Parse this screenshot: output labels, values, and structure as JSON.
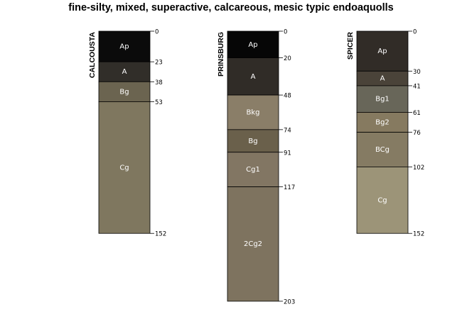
{
  "title": "fine-silty, mixed, superactive, calcareous, mesic typic endoaquolls",
  "profiles": [
    {
      "name": "CALCOUSTA",
      "horizons": [
        {
          "name": "Ap",
          "top": 0,
          "bottom": 23,
          "color": "#0b0b0b",
          "text_color": "#ffffff"
        },
        {
          "name": "A",
          "top": 23,
          "bottom": 38,
          "color": "#312e29",
          "text_color": "#ffffff"
        },
        {
          "name": "Bg",
          "top": 38,
          "bottom": 53,
          "color": "#6b6450",
          "text_color": "#ffffff"
        },
        {
          "name": "Cg",
          "top": 53,
          "bottom": 152,
          "color": "#7f775f",
          "text_color": "#ffffff"
        }
      ],
      "depths": [
        "0",
        "23",
        "38",
        "53",
        "152"
      ]
    },
    {
      "name": "PRINSBURG",
      "horizons": [
        {
          "name": "Ap",
          "top": 0,
          "bottom": 20,
          "color": "#060606",
          "text_color": "#ffffff"
        },
        {
          "name": "A",
          "top": 20,
          "bottom": 48,
          "color": "#302c27",
          "text_color": "#ffffff"
        },
        {
          "name": "Bkg",
          "top": 48,
          "bottom": 74,
          "color": "#8a7e68",
          "text_color": "#ffffff"
        },
        {
          "name": "Bg",
          "top": 74,
          "bottom": 91,
          "color": "#6a604b",
          "text_color": "#ffffff"
        },
        {
          "name": "Cg1",
          "top": 91,
          "bottom": 117,
          "color": "#827663",
          "text_color": "#ffffff"
        },
        {
          "name": "2Cg2",
          "top": 117,
          "bottom": 203,
          "color": "#7e735f",
          "text_color": "#ffffff"
        }
      ],
      "depths": [
        "0",
        "20",
        "48",
        "74",
        "91",
        "117",
        "203"
      ]
    },
    {
      "name": "SPICER",
      "horizons": [
        {
          "name": "Ap",
          "top": 0,
          "bottom": 30,
          "color": "#312c27",
          "text_color": "#ffffff"
        },
        {
          "name": "A",
          "top": 30,
          "bottom": 41,
          "color": "#4a4339",
          "text_color": "#ffffff"
        },
        {
          "name": "Bg1",
          "top": 41,
          "bottom": 61,
          "color": "#686659",
          "text_color": "#ffffff"
        },
        {
          "name": "Bg2",
          "top": 61,
          "bottom": 76,
          "color": "#867a60",
          "text_color": "#ffffff"
        },
        {
          "name": "BCg",
          "top": 76,
          "bottom": 102,
          "color": "#857b63",
          "text_color": "#ffffff"
        },
        {
          "name": "Cg",
          "top": 102,
          "bottom": 152,
          "color": "#9c9478",
          "text_color": "#ffffff"
        }
      ],
      "depths": [
        "0",
        "30",
        "41",
        "61",
        "76",
        "102",
        "152"
      ]
    }
  ]
}
